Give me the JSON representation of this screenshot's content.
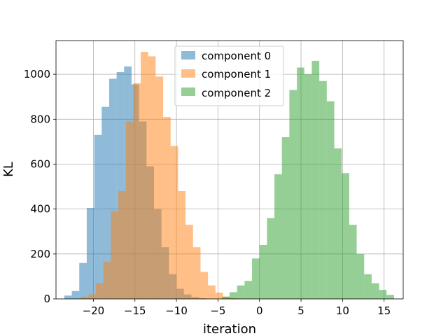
{
  "chart_data": {
    "type": "bar",
    "subtype": "histogram",
    "title": "",
    "xlabel": "iteration",
    "ylabel": "KL",
    "xlim": [
      -24.5,
      17.3
    ],
    "ylim": [
      0,
      1150
    ],
    "xticks": [
      -20,
      -15,
      -10,
      -5,
      0,
      5,
      10,
      15
    ],
    "xtick_labels": [
      "−20",
      "−15",
      "−10",
      "−5",
      "0",
      "5",
      "10",
      "15"
    ],
    "yticks": [
      0,
      200,
      400,
      600,
      800,
      1000
    ],
    "ytick_labels": [
      "0",
      "200",
      "400",
      "600",
      "800",
      "1000"
    ],
    "grid": true,
    "legend_position": "upper-center",
    "series": [
      {
        "name": "component 0",
        "color": "#1f77b4",
        "alpha": 0.5,
        "bin_start": -23.5,
        "bin_width": 0.9,
        "counts": [
          15,
          35,
          160,
          405,
          730,
          855,
          980,
          1010,
          1035,
          955,
          790,
          590,
          400,
          230,
          110,
          45,
          20,
          8,
          3
        ]
      },
      {
        "name": "component 1",
        "color": "#ff7f0e",
        "alpha": 0.5,
        "bin_start": -21.5,
        "bin_width": 0.9,
        "counts": [
          10,
          20,
          70,
          165,
          390,
          480,
          790,
          960,
          1100,
          1080,
          990,
          810,
          680,
          480,
          330,
          230,
          120,
          60,
          28,
          10,
          3
        ]
      },
      {
        "name": "component 2",
        "color": "#2ca02c",
        "alpha": 0.5,
        "bin_start": -4.5,
        "bin_width": 0.9,
        "counts": [
          10,
          30,
          60,
          80,
          180,
          240,
          360,
          555,
          720,
          930,
          1030,
          1000,
          1060,
          970,
          880,
          670,
          560,
          330,
          200,
          110,
          70,
          40,
          18
        ]
      }
    ]
  }
}
